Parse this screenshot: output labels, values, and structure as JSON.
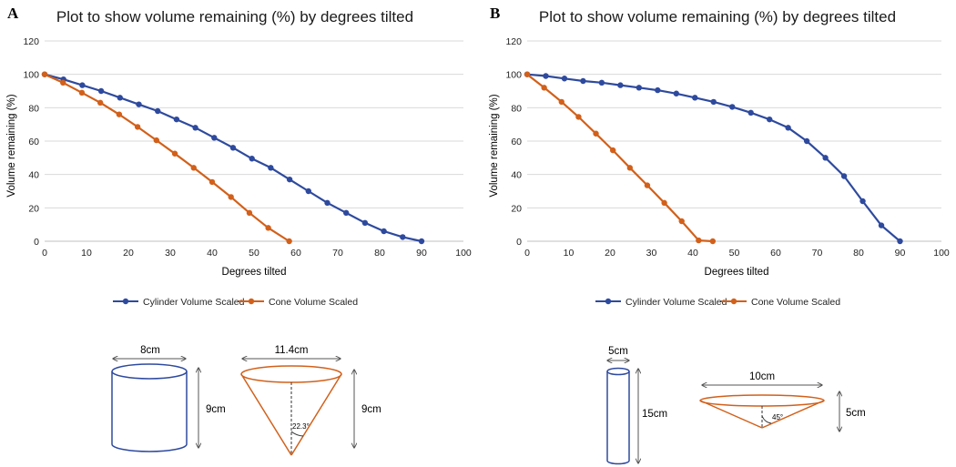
{
  "colors": {
    "cylinder": "#2e4a9e",
    "cone": "#d2601a",
    "grid": "#d9d9d9",
    "axis": "#bfbfbf",
    "dimension": "#555555"
  },
  "chart_data": [
    {
      "panel": "A",
      "type": "line",
      "title": "Plot to show volume remaining (%) by degrees tilted",
      "xlabel": "Degrees tilted",
      "ylabel": "Volume remaining (%)",
      "xlim": [
        0,
        100
      ],
      "ylim": [
        0,
        120
      ],
      "xticks": [
        0,
        10,
        20,
        30,
        40,
        50,
        60,
        70,
        80,
        90,
        100
      ],
      "yticks": [
        0,
        20,
        40,
        60,
        80,
        100,
        120
      ],
      "grid": "horizontal",
      "legend": "bottom",
      "series": [
        {
          "name": "Cylinder Volume Scaled",
          "x": [
            0,
            4.5,
            9,
            13.5,
            18,
            22.5,
            27,
            31.5,
            36,
            40.5,
            45,
            49.5,
            54,
            58.5,
            63,
            67.5,
            72,
            76.5,
            81,
            85.5,
            90
          ],
          "y": [
            100,
            97,
            93.5,
            90,
            86,
            82,
            78,
            73,
            68,
            62,
            56,
            49.5,
            44,
            37,
            30,
            23,
            17,
            11,
            6,
            2.5,
            0
          ]
        },
        {
          "name": "Cone Volume Scaled",
          "x": [
            0,
            4.4,
            8.9,
            13.3,
            17.8,
            22.2,
            26.7,
            31.1,
            35.6,
            40,
            44.5,
            48.9,
            53.4,
            58.4
          ],
          "y": [
            100,
            95,
            89,
            83,
            76,
            68.5,
            60.5,
            52.5,
            44,
            35.5,
            26.5,
            17,
            8,
            0
          ]
        }
      ]
    },
    {
      "panel": "B",
      "type": "line",
      "title": "Plot to show volume remaining (%) by degrees tilted",
      "xlabel": "Degrees tilted",
      "ylabel": "Volume remaining (%)",
      "xlim": [
        0,
        100
      ],
      "ylim": [
        0,
        120
      ],
      "xticks": [
        0,
        10,
        20,
        30,
        40,
        50,
        60,
        70,
        80,
        90,
        100
      ],
      "yticks": [
        0,
        20,
        40,
        60,
        80,
        100,
        120
      ],
      "grid": "horizontal",
      "legend": "bottom",
      "series": [
        {
          "name": "Cylinder Volume Scaled",
          "x": [
            0,
            4.5,
            9,
            13.5,
            18,
            22.5,
            27,
            31.5,
            36,
            40.5,
            45,
            49.5,
            54,
            58.5,
            63,
            67.5,
            72,
            76.5,
            81,
            85.5,
            90
          ],
          "y": [
            100,
            99,
            97.5,
            96,
            95,
            93.5,
            92,
            90.5,
            88.5,
            86,
            83.5,
            80.5,
            77,
            73,
            68,
            60,
            50,
            39,
            24,
            9.5,
            0
          ]
        },
        {
          "name": "Cone Volume Scaled",
          "x": [
            0,
            4.1,
            8.3,
            12.4,
            16.6,
            20.7,
            24.8,
            29,
            33.1,
            37.3,
            41.4,
            44.8
          ],
          "y": [
            100,
            92,
            83.5,
            74.5,
            64.5,
            54.5,
            44,
            33.5,
            23,
            12,
            0.5,
            0
          ]
        }
      ]
    }
  ],
  "panels": [
    {
      "letter": "A",
      "diagram": {
        "cylinder_diameter": "8cm",
        "cylinder_height": "9cm",
        "cone_diameter": "11.4cm",
        "cone_height": "9cm",
        "cone_angle": "22.3°"
      }
    },
    {
      "letter": "B",
      "diagram": {
        "cylinder_diameter": "5cm",
        "cylinder_height": "15cm",
        "cone_diameter": "10cm",
        "cone_height": "5cm",
        "cone_angle": "45°"
      }
    }
  ]
}
